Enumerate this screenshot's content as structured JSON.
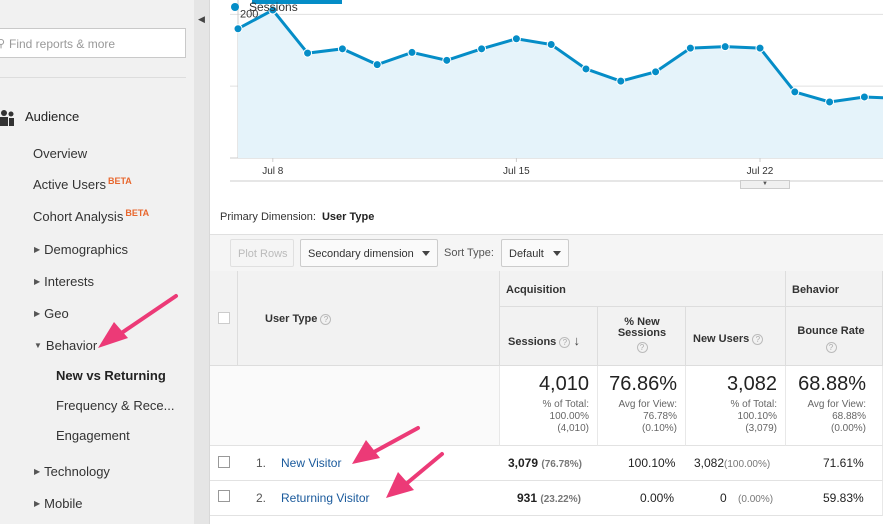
{
  "sidebar": {
    "search_placeholder": "Find reports & more",
    "section": "Audience",
    "items": [
      {
        "label": "Overview"
      },
      {
        "label": "Active Users",
        "badge": "BETA"
      },
      {
        "label": "Cohort Analysis",
        "badge": "BETA"
      },
      {
        "label": "Demographics",
        "expander": "collapsed"
      },
      {
        "label": "Interests",
        "expander": "collapsed"
      },
      {
        "label": "Geo",
        "expander": "collapsed"
      },
      {
        "label": "Behavior",
        "expander": "expanded"
      },
      {
        "label": "New vs Returning",
        "selected": true
      },
      {
        "label": "Frequency & Rece..."
      },
      {
        "label": "Engagement"
      },
      {
        "label": "Technology",
        "expander": "collapsed"
      },
      {
        "label": "Mobile",
        "expander": "collapsed"
      }
    ]
  },
  "chart_data": {
    "type": "line",
    "series": [
      {
        "name": "Sessions",
        "color": "#058dc7",
        "values": [
          180,
          206,
          146,
          152,
          130,
          147,
          136,
          152,
          166,
          158,
          124,
          107,
          120,
          153,
          155,
          153,
          92,
          78,
          85,
          83
        ]
      }
    ],
    "x_tick_labels": [
      "Jul 8",
      "Jul 15",
      "Jul 22"
    ],
    "y_tick_labels": [
      "200",
      "100"
    ],
    "ylim": [
      0,
      220
    ],
    "grid": true
  },
  "primary_dimension": {
    "label": "Primary Dimension:",
    "value": "User Type"
  },
  "toolbar": {
    "plot_rows": "Plot Rows",
    "secondary_dimension": "Secondary dimension",
    "sort_type_label": "Sort Type:",
    "sort_type_value": "Default"
  },
  "table": {
    "dimension_header": "User Type",
    "group_acquisition": "Acquisition",
    "group_behavior": "Behavior",
    "columns": {
      "sessions": "Sessions",
      "pct_new_sessions": "% New Sessions",
      "new_users": "New Users",
      "bounce_rate": "Bounce Rate"
    },
    "totals": {
      "sessions": "4,010",
      "sessions_sub1": "% of Total:",
      "sessions_sub2": "100.00%",
      "sessions_sub3": "(4,010)",
      "pct_new": "76.86%",
      "pct_new_sub1": "Avg for View:",
      "pct_new_sub2": "76.78%",
      "pct_new_sub3": "(0.10%)",
      "new_users": "3,082",
      "new_users_sub1": "% of Total:",
      "new_users_sub2": "100.10%",
      "new_users_sub3": "(3,079)",
      "bounce": "68.88%",
      "bounce_sub1": "Avg for View:",
      "bounce_sub2": "68.88%",
      "bounce_sub3": "(0.00%)"
    },
    "rows": [
      {
        "index": "1.",
        "label": "New Visitor",
        "sessions": "3,079",
        "sessions_pct": "(76.78%)",
        "pct_new": "100.10%",
        "new_users": "3,082",
        "new_users_pct": "(100.00%)",
        "bounce": "71.61%"
      },
      {
        "index": "2.",
        "label": "Returning Visitor",
        "sessions": "931",
        "sessions_pct": "(23.22%)",
        "pct_new": "0.00%",
        "new_users": "0",
        "new_users_pct": "(0.00%)",
        "bounce": "59.83%"
      }
    ]
  },
  "colors": {
    "accent": "#058dc7",
    "annotation": "#ec3a77",
    "link": "#1a5a9c",
    "beta": "#e8672e"
  }
}
